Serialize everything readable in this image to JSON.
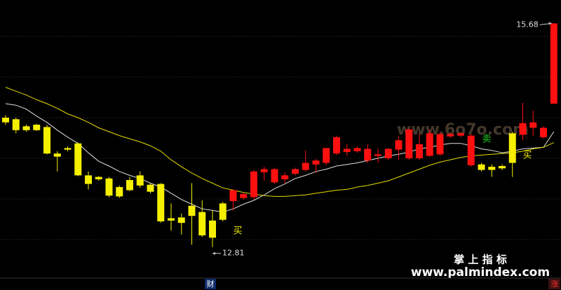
{
  "chart_data": {
    "type": "candlestick",
    "up_color": "#ff1010",
    "down_color": "#f5f000",
    "open": [
      14.47,
      14.45,
      14.36,
      14.38,
      14.35,
      14.01,
      14.08,
      14.14,
      13.73,
      13.71,
      13.69,
      13.58,
      13.67,
      13.73,
      13.61,
      13.62,
      13.18,
      13.19,
      13.34,
      13.26,
      13.15,
      13.37,
      13.4,
      13.44,
      13.45,
      13.77,
      13.64,
      13.68,
      13.75,
      13.8,
      13.87,
      13.89,
      14.01,
      14.03,
      14.04,
      13.92,
      13.98,
      13.95,
      14.06,
      13.95,
      13.95,
      13.98,
      14.0,
      14.23,
      14.24,
      13.86,
      13.87,
      13.84,
      13.85,
      14.27,
      14.25,
      14.34,
      14.22,
      14.65
    ],
    "high": [
      14.5,
      14.47,
      14.38,
      14.39,
      14.38,
      14.04,
      14.1,
      14.15,
      13.78,
      13.72,
      13.71,
      13.6,
      13.71,
      13.78,
      13.63,
      13.63,
      13.37,
      13.24,
      13.63,
      13.41,
      13.28,
      13.39,
      13.55,
      13.51,
      13.8,
      13.84,
      13.83,
      13.77,
      13.83,
      14.05,
      13.94,
      14.08,
      14.24,
      14.13,
      14.1,
      14.13,
      14.07,
      14.08,
      14.23,
      14.33,
      14.27,
      14.32,
      14.28,
      14.28,
      14.28,
      14.26,
      13.89,
      13.87,
      13.87,
      14.29,
      14.66,
      14.56,
      14.36,
      15.68
    ],
    "low": [
      14.38,
      14.27,
      14.29,
      14.3,
      14.0,
      13.78,
      14.04,
      13.72,
      13.55,
      13.66,
      13.45,
      13.44,
      13.53,
      13.57,
      13.5,
      13.12,
      13.02,
      12.97,
      12.84,
      12.94,
      12.81,
      13.14,
      13.28,
      13.42,
      13.42,
      13.66,
      13.62,
      13.63,
      13.73,
      13.78,
      13.76,
      13.86,
      13.99,
      13.98,
      14.02,
      13.89,
      13.89,
      13.93,
      13.93,
      13.93,
      13.93,
      13.97,
      13.98,
      14.21,
      14.22,
      13.84,
      13.78,
      13.71,
      13.8,
      13.71,
      14.18,
      14.24,
      14.2,
      14.65
    ],
    "close": [
      14.41,
      14.31,
      14.31,
      14.31,
      14.01,
      13.97,
      14.06,
      13.73,
      13.62,
      13.68,
      13.47,
      13.46,
      13.54,
      13.6,
      13.52,
      13.14,
      13.15,
      13.12,
      13.21,
      12.96,
      12.93,
      13.16,
      13.54,
      13.49,
      13.78,
      13.81,
      13.81,
      13.73,
      13.81,
      13.89,
      13.92,
      14.08,
      14.22,
      14.07,
      14.08,
      14.07,
      14.0,
      14.07,
      14.18,
      14.32,
      14.13,
      14.27,
      14.26,
      14.26,
      14.27,
      14.24,
      13.8,
      13.8,
      13.82,
      13.89,
      14.4,
      14.41,
      14.34,
      15.68
    ],
    "lines": [
      {
        "color": "#e0e0e0",
        "values": [
          14.65,
          14.63,
          14.58,
          14.49,
          14.41,
          14.31,
          14.22,
          14.14,
          14.02,
          13.91,
          13.85,
          13.78,
          13.73,
          13.69,
          13.63,
          13.58,
          13.5,
          13.42,
          13.36,
          13.3,
          13.28,
          13.26,
          13.3,
          13.36,
          13.41,
          13.48,
          13.56,
          13.62,
          13.69,
          13.73,
          13.78,
          13.81,
          13.85,
          13.87,
          13.89,
          13.92,
          13.95,
          13.98,
          14.0,
          14.03,
          14.07,
          14.09,
          14.12,
          14.14,
          14.14,
          14.11,
          14.07,
          14.05,
          14.02,
          14.04,
          14.07,
          14.08,
          14.09,
          14.29
        ]
      },
      {
        "color": "#e8dc00",
        "values": [
          14.86,
          14.81,
          14.76,
          14.7,
          14.65,
          14.59,
          14.52,
          14.47,
          14.41,
          14.34,
          14.29,
          14.24,
          14.2,
          14.16,
          14.11,
          14.04,
          13.93,
          13.84,
          13.76,
          13.69,
          13.63,
          13.57,
          13.54,
          13.51,
          13.49,
          13.47,
          13.46,
          13.46,
          13.47,
          13.48,
          13.5,
          13.52,
          13.54,
          13.55,
          13.58,
          13.6,
          13.63,
          13.66,
          13.71,
          13.76,
          13.81,
          13.86,
          13.9,
          13.93,
          13.96,
          13.98,
          13.99,
          14.0,
          14.01,
          14.02,
          14.04,
          14.07,
          14.09,
          14.15
        ]
      }
    ],
    "ylim": [
      12.43,
      15.98
    ],
    "signals": {
      "buy": "买",
      "sell": "卖"
    },
    "watermark": "www.6o7o.com",
    "brand": {
      "name": "掌 上 指 标",
      "url": "www.palmindex.com"
    },
    "footer": {
      "left": "财",
      "right": "涨"
    }
  }
}
